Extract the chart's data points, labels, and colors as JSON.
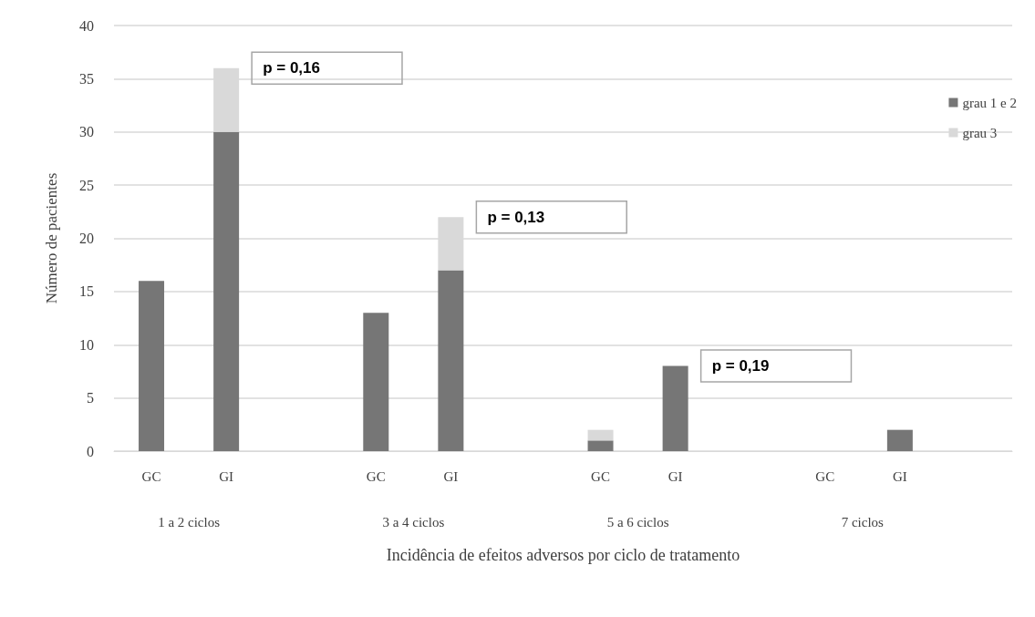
{
  "chart_data": {
    "type": "bar",
    "stacked": true,
    "xlabel": "Incidência de efeitos adversos por ciclo de tratamento",
    "ylabel": "Número de pacientes",
    "categories": [
      "GC",
      "GI",
      null,
      "GC",
      "GI",
      null,
      "GC",
      "GI",
      null,
      "GC",
      "GI",
      null
    ],
    "series": [
      {
        "name": "grau 1 e 2",
        "color": "#767676",
        "values": [
          16,
          30,
          null,
          13,
          17,
          null,
          1,
          8,
          null,
          0,
          2,
          null
        ]
      },
      {
        "name": "grau 3",
        "color": "#d9d9d9",
        "values": [
          0,
          6,
          null,
          0,
          5,
          null,
          1,
          0,
          null,
          0,
          0,
          null
        ]
      }
    ],
    "ylim": [
      0,
      40
    ],
    "yticks": [
      0,
      5,
      10,
      15,
      20,
      25,
      30,
      35,
      40
    ],
    "grid": "y",
    "legend": "top right",
    "annotations": [
      "1 a 2 ciclos",
      "3 a 4 ciclos",
      "5 a 6 ciclos",
      "7 ciclos",
      "p = 0,16",
      "p = 0,13",
      "p = 0,19"
    ]
  }
}
